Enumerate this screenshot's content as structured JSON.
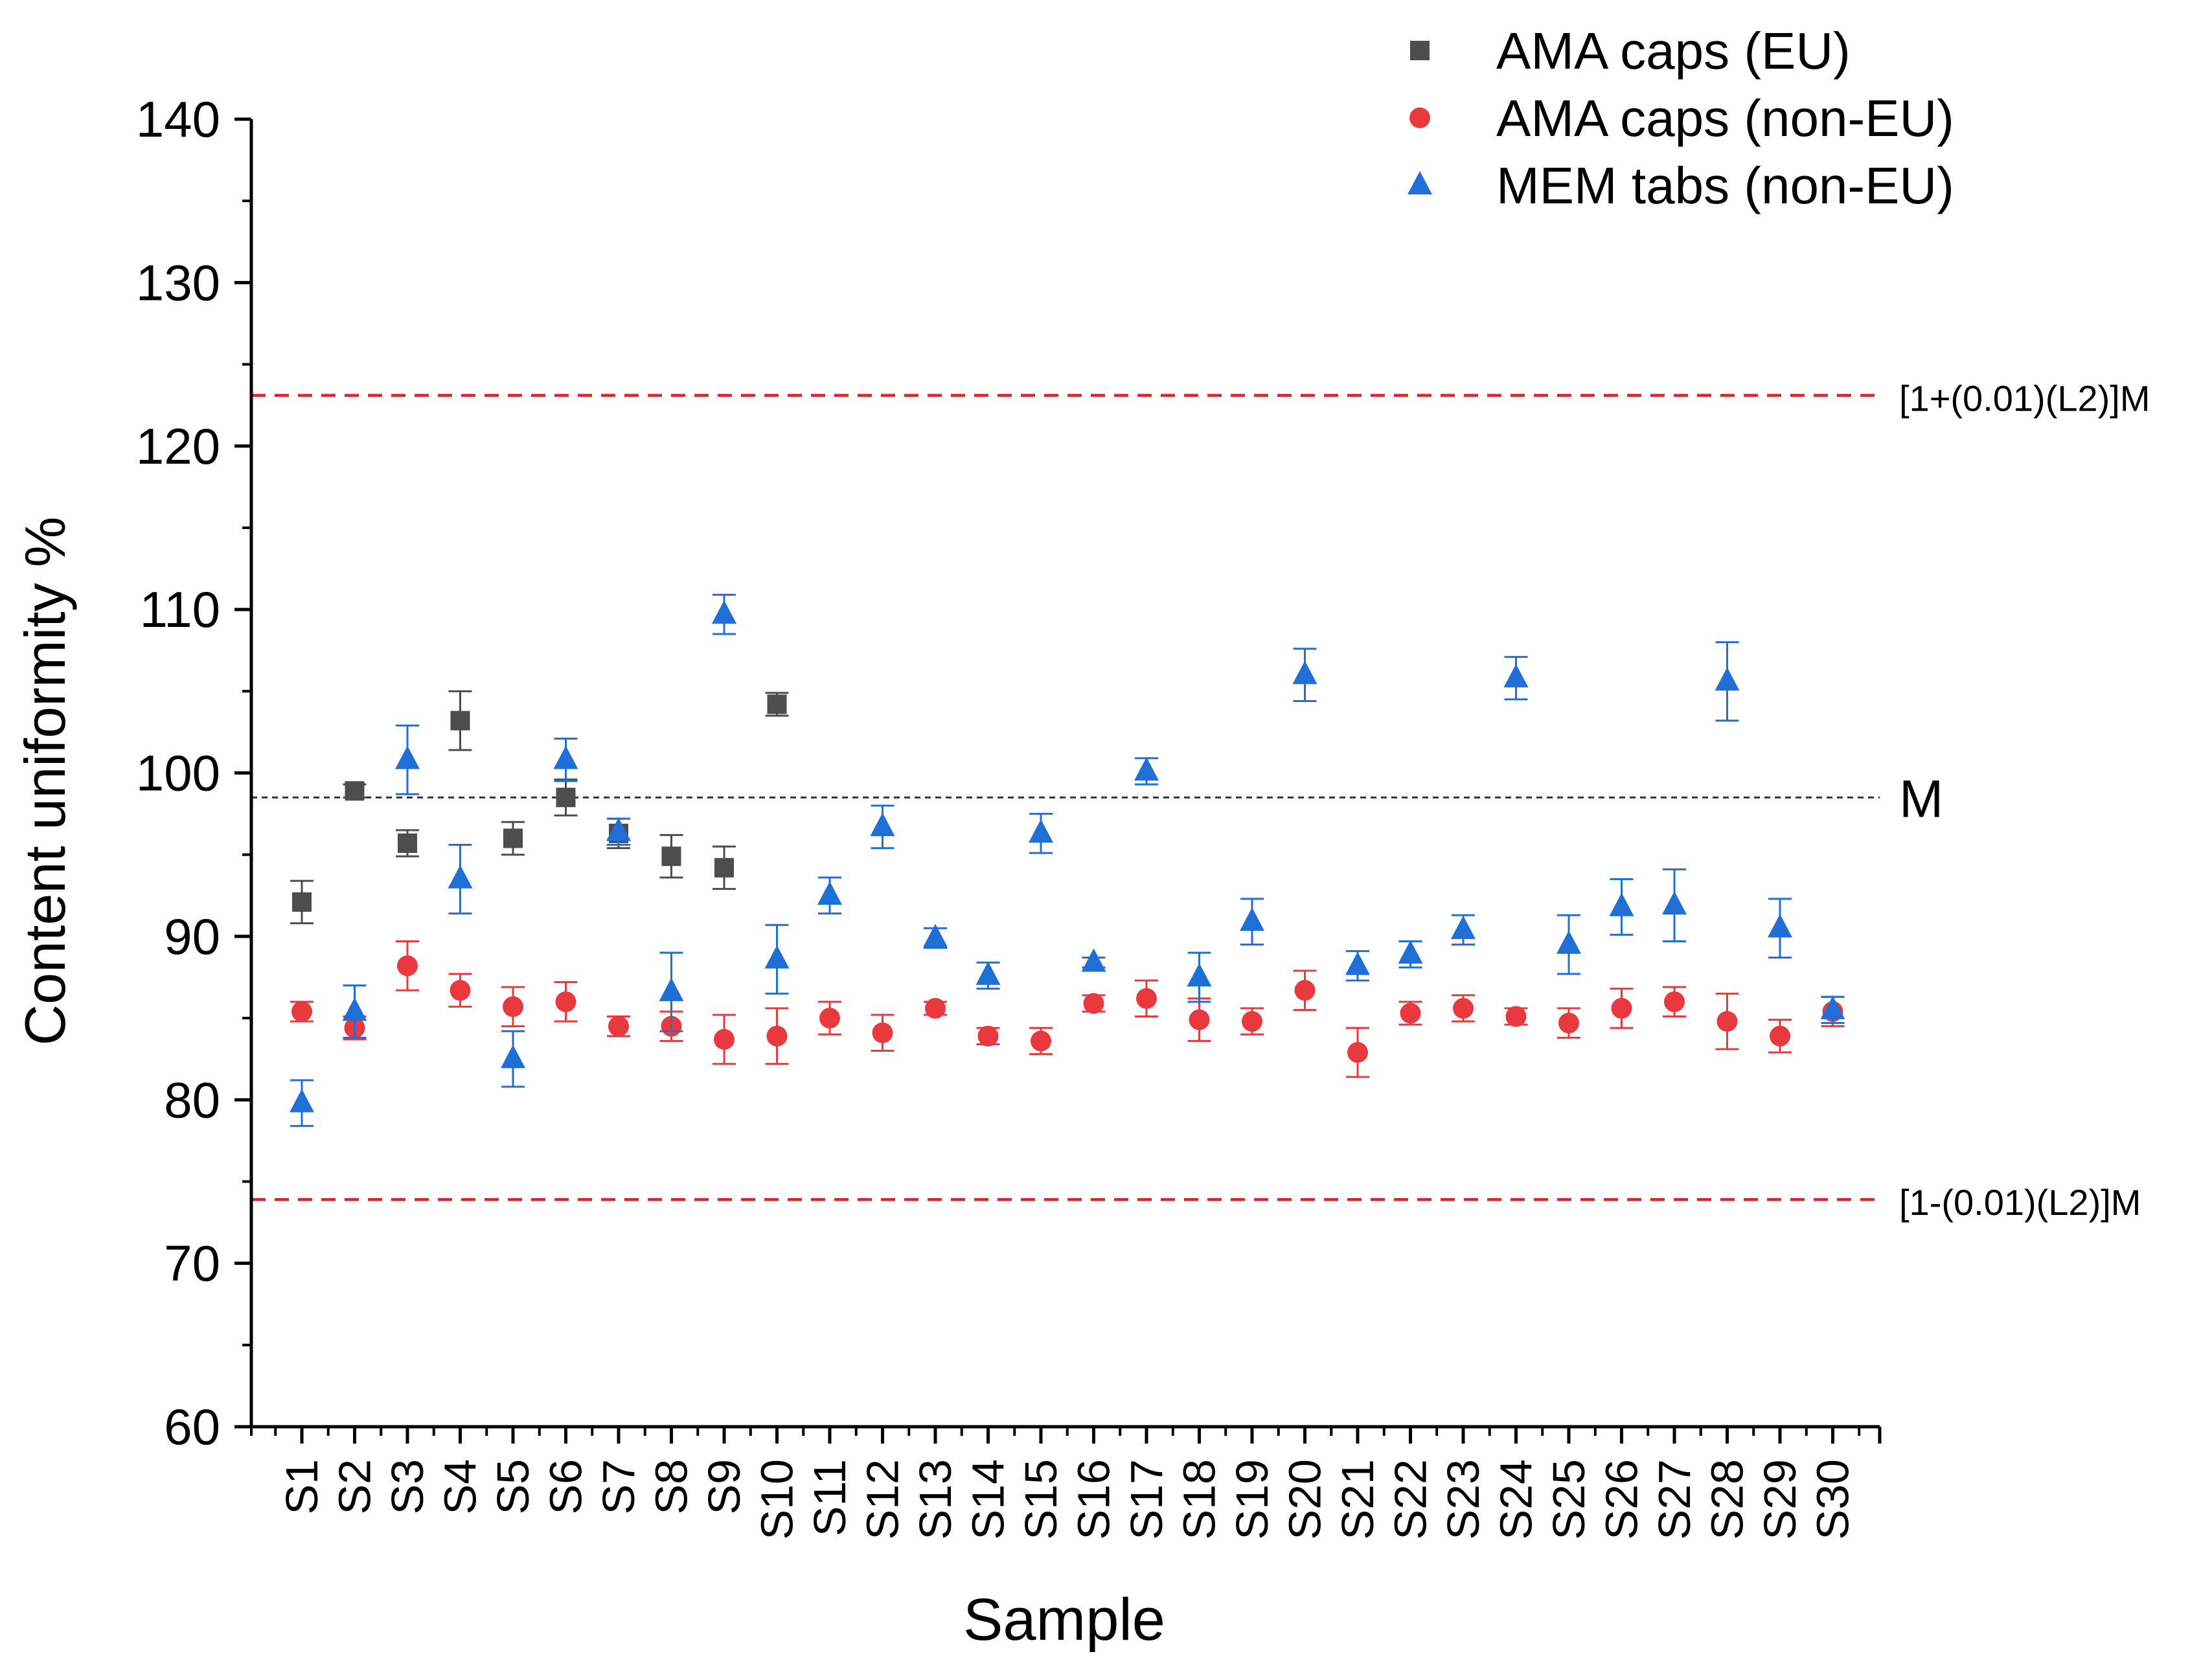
{
  "chart_data": {
    "type": "scatter",
    "title": "",
    "xlabel": "Sample",
    "ylabel": "Content uniformity %",
    "ylim": [
      60,
      140
    ],
    "yticks": [
      60,
      70,
      80,
      90,
      100,
      110,
      120,
      130,
      140
    ],
    "grid": false,
    "legend_position": "top-right",
    "categories": [
      "S1",
      "S2",
      "S3",
      "S4",
      "S5",
      "S6",
      "S7",
      "S8",
      "S9",
      "S10",
      "S11",
      "S12",
      "S13",
      "S14",
      "S15",
      "S16",
      "S17",
      "S18",
      "S19",
      "S20",
      "S21",
      "S22",
      "S23",
      "S24",
      "S25",
      "S26",
      "S27",
      "S28",
      "S29",
      "S30"
    ],
    "series": [
      {
        "name": "AMA caps (EU)",
        "marker": "square",
        "color": "#4d4d4d",
        "x": [
          "S1",
          "S2",
          "S3",
          "S4",
          "S5",
          "S6",
          "S7",
          "S8",
          "S9",
          "S10"
        ],
        "values": [
          92.1,
          98.9,
          95.7,
          103.2,
          96.0,
          98.5,
          96.3,
          94.9,
          94.2,
          104.2
        ],
        "errors": [
          1.3,
          0.4,
          0.8,
          1.8,
          1.0,
          1.1,
          0.9,
          1.3,
          1.3,
          0.7
        ]
      },
      {
        "name": "AMA caps (non-EU)",
        "marker": "circle",
        "color": "#e8393f",
        "x": [
          "S1",
          "S2",
          "S3",
          "S4",
          "S5",
          "S6",
          "S7",
          "S8",
          "S9",
          "S10",
          "S11",
          "S12",
          "S13",
          "S14",
          "S15",
          "S16",
          "S17",
          "S18",
          "S19",
          "S20",
          "S21",
          "S22",
          "S23",
          "S24",
          "S25",
          "S26",
          "S27",
          "S28",
          "S29",
          "S30"
        ],
        "values": [
          85.4,
          84.4,
          88.2,
          86.7,
          85.7,
          86.0,
          84.5,
          84.5,
          83.7,
          83.9,
          85.0,
          84.1,
          85.6,
          83.9,
          83.6,
          85.9,
          86.2,
          84.9,
          84.8,
          86.7,
          82.9,
          85.3,
          85.6,
          85.1,
          84.7,
          85.6,
          86.0,
          84.8,
          83.9,
          85.4
        ],
        "errors": [
          0.6,
          0.7,
          1.5,
          1.0,
          1.2,
          1.2,
          0.6,
          0.9,
          1.5,
          1.7,
          1.0,
          1.1,
          0.4,
          0.5,
          0.8,
          0.5,
          1.1,
          1.3,
          0.8,
          1.2,
          1.5,
          0.7,
          0.8,
          0.5,
          0.9,
          1.2,
          0.9,
          1.7,
          1.0,
          0.9
        ]
      },
      {
        "name": "MEM tabs (non-EU)",
        "marker": "triangle",
        "color": "#1f6fd6",
        "x": [
          "S1",
          "S2",
          "S3",
          "S4",
          "S5",
          "S6",
          "S7",
          "S8",
          "S9",
          "S10",
          "S11",
          "S12",
          "S13",
          "S14",
          "S15",
          "S16",
          "S17",
          "S18",
          "S19",
          "S20",
          "S21",
          "S22",
          "S23",
          "S24",
          "S25",
          "S26",
          "S27",
          "S28",
          "S29",
          "S30"
        ],
        "values": [
          79.8,
          85.4,
          100.8,
          93.5,
          82.5,
          100.8,
          96.4,
          86.6,
          109.7,
          88.6,
          92.5,
          96.7,
          89.9,
          87.6,
          96.3,
          88.4,
          100.1,
          87.5,
          90.9,
          106.0,
          88.2,
          88.9,
          90.4,
          105.8,
          89.5,
          91.8,
          91.9,
          105.6,
          90.5,
          85.5
        ],
        "errors": [
          1.4,
          1.6,
          2.1,
          2.1,
          1.7,
          1.3,
          0.8,
          2.4,
          1.2,
          2.1,
          1.1,
          1.3,
          0.6,
          0.8,
          1.2,
          0.3,
          0.8,
          1.5,
          1.4,
          1.6,
          0.9,
          0.8,
          0.9,
          1.3,
          1.8,
          1.7,
          2.2,
          2.4,
          1.8,
          0.8
        ]
      }
    ],
    "reference_lines": [
      {
        "name": "upper-limit",
        "value": 123.1,
        "label": "[1+(0.01)(L2)]M",
        "style": "dashed",
        "color": "#d62728"
      },
      {
        "name": "mean",
        "value": 98.5,
        "label": "M",
        "style": "dotted",
        "color": "#333333"
      },
      {
        "name": "lower-limit",
        "value": 73.9,
        "label": "[1-(0.01)(L2)]M",
        "style": "dashed",
        "color": "#d62728"
      }
    ]
  }
}
